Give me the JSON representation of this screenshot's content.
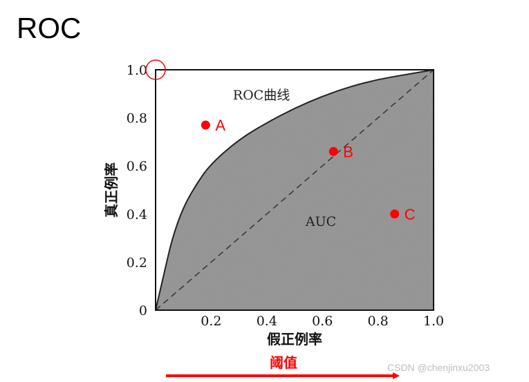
{
  "slide": {
    "title": "ROC",
    "watermark": "CSDN @chenjinxu2003"
  },
  "chart_data": {
    "type": "area",
    "xlabel": "假正例率",
    "ylabel": "真正例率",
    "xlim": [
      0,
      1
    ],
    "ylim": [
      0,
      1
    ],
    "x_ticks": [
      "0.2",
      "0.4",
      "0.6",
      "0.8",
      "1.0"
    ],
    "y_ticks": [
      "0",
      "0.2",
      "0.4",
      "0.6",
      "0.8",
      "1.0"
    ],
    "grid": false,
    "curve": {
      "label": "ROC曲线",
      "x": [
        0,
        0.03,
        0.06,
        0.1,
        0.15,
        0.2,
        0.3,
        0.4,
        0.5,
        0.6,
        0.7,
        0.8,
        0.9,
        1.0
      ],
      "y": [
        0,
        0.15,
        0.3,
        0.43,
        0.53,
        0.61,
        0.71,
        0.78,
        0.84,
        0.89,
        0.93,
        0.96,
        0.98,
        1.0
      ]
    },
    "diagonal": {
      "x": [
        0,
        1
      ],
      "y": [
        0,
        1
      ],
      "style": "dashed"
    },
    "area_label": "AUC",
    "points": [
      {
        "label": "A",
        "x": 0.18,
        "y": 0.77
      },
      {
        "label": "B",
        "x": 0.64,
        "y": 0.66
      },
      {
        "label": "C",
        "x": 0.86,
        "y": 0.4
      }
    ],
    "highlight_corner": {
      "x": 0,
      "y": 1,
      "shape": "circle",
      "color": "#ff0000"
    },
    "threshold_arrow": {
      "label": "阈值",
      "direction": "right",
      "color": "#ff0000"
    },
    "colors": {
      "fill": "#9c9c9c",
      "curve": "#222222",
      "axis": "#111111",
      "points": "#ff0000"
    }
  }
}
